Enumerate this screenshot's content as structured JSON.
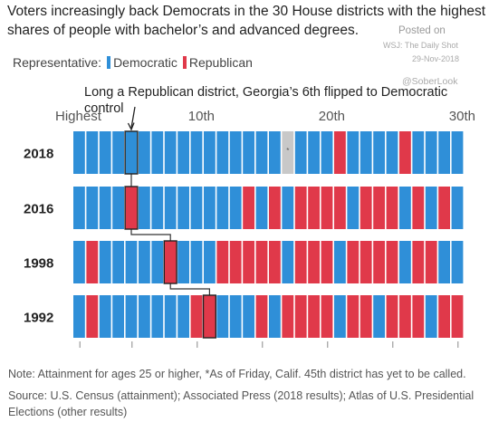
{
  "title": {
    "line1": "Voters increasingly back Democrats in the 30 House districts with the highest",
    "line2": "shares of people with bachelor’s and advanced degrees."
  },
  "watermark": {
    "posted": "Posted on",
    "source": "WSJ: The Daily Shot",
    "date": "29-Nov-2018",
    "handle": "@SoberLook"
  },
  "legend": {
    "label": "Representative:",
    "democratic": "Democratic",
    "republican": "Republican"
  },
  "colors": {
    "democratic": "#2f8fd8",
    "republican": "#e0394a",
    "undecided": "#c8c8c8"
  },
  "annotation": {
    "text": "Long a Republican district, Georgia’s 6th flipped to Democratic control"
  },
  "chart_data": {
    "type": "heatmap",
    "x_tick_labels": [
      {
        "rank": 1,
        "label": "Highest"
      },
      {
        "rank": 10,
        "label": "10th"
      },
      {
        "rank": 20,
        "label": "20th"
      },
      {
        "rank": 30,
        "label": "30th"
      }
    ],
    "rows": [
      {
        "year": "2018",
        "georgia_6th_rank": 5,
        "cells": [
          "D",
          "D",
          "D",
          "D",
          "D",
          "D",
          "D",
          "D",
          "D",
          "D",
          "D",
          "D",
          "D",
          "D",
          "D",
          "D",
          "*",
          "D",
          "D",
          "D",
          "R",
          "D",
          "D",
          "D",
          "D",
          "R",
          "D",
          "D",
          "D",
          "D"
        ]
      },
      {
        "year": "2016",
        "georgia_6th_rank": 5,
        "cells": [
          "D",
          "D",
          "D",
          "D",
          "R",
          "D",
          "D",
          "D",
          "D",
          "D",
          "D",
          "D",
          "D",
          "R",
          "D",
          "R",
          "D",
          "R",
          "R",
          "R",
          "R",
          "D",
          "R",
          "R",
          "R",
          "D",
          "R",
          "D",
          "R",
          "D"
        ]
      },
      {
        "year": "1998",
        "georgia_6th_rank": 8,
        "cells": [
          "D",
          "R",
          "D",
          "D",
          "D",
          "D",
          "D",
          "R",
          "D",
          "D",
          "D",
          "R",
          "R",
          "R",
          "R",
          "R",
          "D",
          "R",
          "R",
          "R",
          "D",
          "R",
          "R",
          "R",
          "R",
          "D",
          "R",
          "R",
          "D",
          "D"
        ]
      },
      {
        "year": "1992",
        "georgia_6th_rank": 11,
        "cells": [
          "D",
          "R",
          "D",
          "D",
          "D",
          "D",
          "D",
          "D",
          "D",
          "R",
          "R",
          "D",
          "D",
          "D",
          "R",
          "D",
          "R",
          "R",
          "R",
          "R",
          "D",
          "R",
          "R",
          "D",
          "R",
          "R",
          "R",
          "D",
          "R",
          "R"
        ]
      }
    ],
    "undecided_marker": "*"
  },
  "footer": {
    "note": "Note: Attainment for ages 25 or higher, *As of Friday, Calif. 45th district has yet to be called.",
    "source": "Source: U.S. Census (attainment); Associated Press (2018 results); Atlas of U.S. Presidential Elections (other results)"
  }
}
